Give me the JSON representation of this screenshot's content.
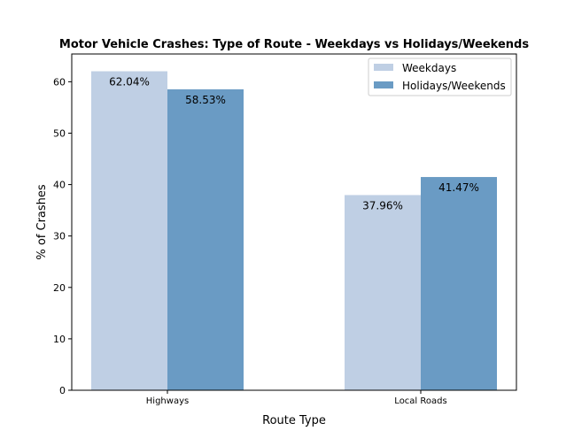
{
  "chart_data": {
    "type": "bar",
    "title": "Motor Vehicle Crashes: Type of Route - Weekdays vs Holidays/Weekends",
    "xlabel": "Route Type",
    "ylabel": "% of Crashes",
    "categories": [
      "Highways",
      "Local Roads"
    ],
    "series": [
      {
        "name": "Weekdays",
        "values": [
          62.04,
          37.96
        ],
        "labels": [
          "62.04%",
          "37.96%"
        ],
        "color": "#bfcfe4"
      },
      {
        "name": "Holidays/Weekends",
        "values": [
          58.53,
          41.47
        ],
        "labels": [
          "58.53%",
          "41.47%"
        ],
        "color": "#6a9bc4"
      }
    ],
    "ylim": [
      0,
      65.4
    ],
    "yticks": [
      "0",
      "10",
      "20",
      "30",
      "40",
      "50",
      "60"
    ],
    "grid": false,
    "legend_position": "top-right"
  }
}
